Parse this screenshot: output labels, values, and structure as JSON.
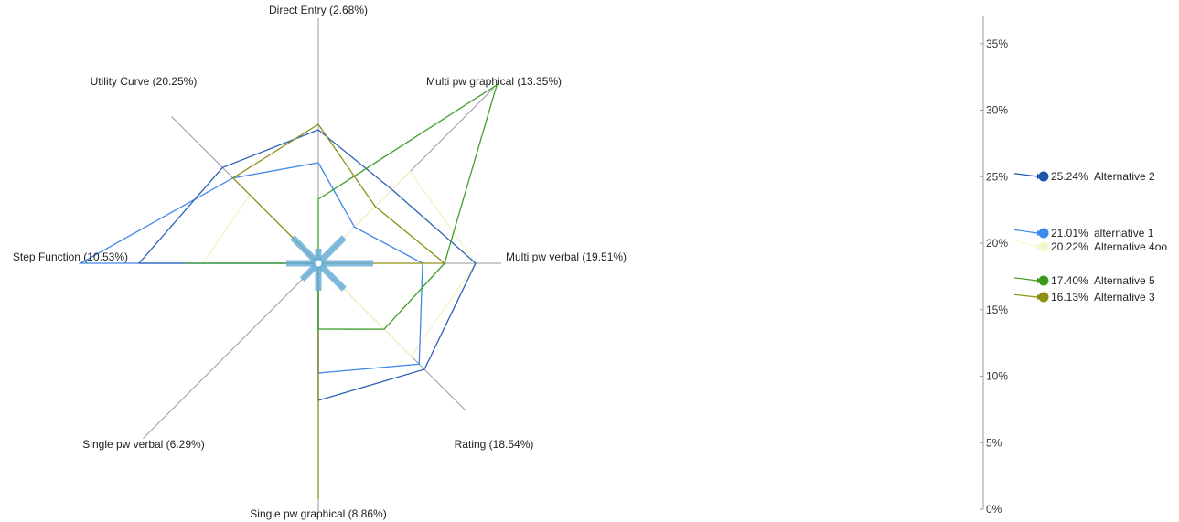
{
  "chart_data": [
    {
      "type": "radar",
      "axes": [
        {
          "label": "Direct Entry (2.68%)"
        },
        {
          "label": "Multi pw graphical (13.35%)"
        },
        {
          "label": "Multi pw verbal (19.51%)"
        },
        {
          "label": "Rating (18.54%)"
        },
        {
          "label": "Single pw graphical (8.86%)"
        },
        {
          "label": "Single pw verbal (6.29%)"
        },
        {
          "label": "Step Function (10.53%)"
        },
        {
          "label": "Utility Curve (20.25%)"
        }
      ],
      "scale_max": 1,
      "series": [
        {
          "name": "Alternative 2",
          "color": "#2b62b5",
          "values": [
            0.73,
            0.57,
            0.86,
            0.82,
            0.75,
            0.0,
            0.98,
            0.74
          ]
        },
        {
          "name": "alternative 1",
          "color": "#3f86e8",
          "values": [
            0.55,
            0.28,
            0.57,
            0.78,
            0.6,
            0.0,
            1.3,
            0.66
          ]
        },
        {
          "name": "Alternative 4oo",
          "color": "#f1f1c4",
          "values": [
            0.0,
            0.71,
            0.86,
            0.72,
            0.0,
            0.0,
            0.63,
            0.53
          ]
        },
        {
          "name": "Alternative 5",
          "color": "#3f9f2a",
          "values": [
            0.35,
            1.38,
            0.69,
            0.51,
            0.36,
            0.0,
            0.73,
            0.0
          ]
        },
        {
          "name": "Alternative 3",
          "color": "#8e8f16",
          "values": [
            0.76,
            0.44,
            0.69,
            0.0,
            1.29,
            0.0,
            0.0,
            0.66
          ]
        }
      ]
    },
    {
      "type": "scatter",
      "ylim": [
        0,
        38
      ],
      "yticks": [
        "0%",
        "5%",
        "10%",
        "15%",
        "20%",
        "25%",
        "30%",
        "35%"
      ],
      "series": [
        {
          "name": "Alternative 2",
          "value": 25.24,
          "label": "25.24%",
          "color": "#1c57ad"
        },
        {
          "name": "alternative 1",
          "value": 21.01,
          "label": "21.01%",
          "color": "#3d88ec"
        },
        {
          "name": "Alternative 4oo",
          "value": 20.22,
          "label": "20.22%",
          "color": "#f6f6cc"
        },
        {
          "name": "Alternative 5",
          "value": 17.4,
          "label": "17.40%",
          "color": "#3a9a1b"
        },
        {
          "name": "Alternative 3",
          "value": 16.13,
          "label": "16.13%",
          "color": "#8e8f0e"
        }
      ]
    }
  ],
  "colors": {
    "axis": "#9a9a9a",
    "star": "#6aaed8"
  }
}
